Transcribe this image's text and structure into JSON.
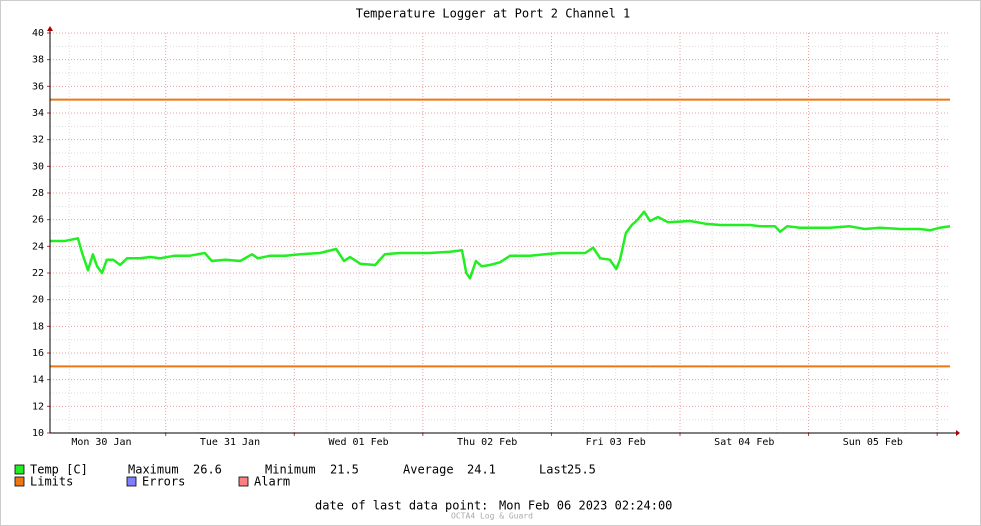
{
  "chart_data": {
    "type": "line",
    "title": "Temperature Logger at Port 2 Channel 1",
    "x": [
      0,
      2.8,
      5.2,
      6.0,
      7.1,
      8.0,
      8.8,
      9.7,
      10.6,
      11.8,
      13.1,
      14.4,
      16.8,
      18.7,
      20.5,
      23.3,
      26.1,
      28.9,
      30.2,
      32.7,
      35.5,
      37.7,
      38.8,
      41.1,
      43.9,
      46.7,
      50.4,
      53.4,
      54.9,
      56.0,
      57.9,
      60.7,
      62.5,
      65.3,
      70.9,
      74.7,
      76.9,
      77.7,
      78.4,
      79.5,
      80.6,
      82.1,
      84.0,
      85.9,
      89.6,
      92.4,
      95.2,
      99.9,
      101.4,
      102.7,
      104.5,
      105.7,
      106.4,
      107.5,
      108.6,
      109.7,
      110.9,
      112.0,
      113.5,
      115.4,
      119.5,
      122.3,
      125.1,
      130.7,
      132.5,
      135.3,
      136.3,
      137.6,
      140.0,
      142.8,
      145.6,
      149.3,
      152.1,
      154.9,
      158.7,
      162.4,
      164.3,
      166.1,
      168
    ],
    "series": [
      {
        "name": "Temp [C]",
        "color": "#22ee22",
        "values": [
          24.4,
          24.4,
          24.6,
          23.5,
          22.2,
          23.4,
          22.5,
          22.0,
          23.0,
          23.0,
          22.6,
          23.1,
          23.1,
          23.2,
          23.1,
          23.3,
          23.3,
          23.5,
          22.9,
          23.0,
          22.9,
          23.4,
          23.1,
          23.3,
          23.3,
          23.4,
          23.5,
          23.8,
          22.9,
          23.2,
          22.7,
          22.6,
          23.4,
          23.5,
          23.5,
          23.6,
          23.7,
          22.0,
          21.6,
          22.9,
          22.5,
          22.6,
          22.8,
          23.3,
          23.3,
          23.4,
          23.5,
          23.5,
          23.9,
          23.1,
          23.0,
          22.3,
          23.0,
          25.0,
          25.6,
          26.0,
          26.6,
          25.9,
          26.2,
          25.8,
          25.9,
          25.7,
          25.6,
          25.6,
          25.5,
          25.5,
          25.1,
          25.5,
          25.4,
          25.4,
          25.4,
          25.5,
          25.3,
          25.4,
          25.3,
          25.3,
          25.2,
          25.4,
          25.5
        ]
      }
    ],
    "limits": {
      "name": "Limits",
      "color": "#ee7711",
      "values": [
        15,
        35
      ]
    },
    "legend_extra": [
      {
        "name": "Errors",
        "color": "#7f7fff"
      },
      {
        "name": "Alarm",
        "color": "#ff7f7f"
      }
    ],
    "xlim": [
      0,
      168
    ],
    "xticks": [
      {
        "value": 9.6,
        "label": "Mon 30 Jan"
      },
      {
        "value": 33.6,
        "label": "Tue 31 Jan"
      },
      {
        "value": 57.6,
        "label": "Wed 01 Feb"
      },
      {
        "value": 81.6,
        "label": "Thu 02 Feb"
      },
      {
        "value": 105.6,
        "label": "Fri 03 Feb"
      },
      {
        "value": 129.6,
        "label": "Sat 04 Feb"
      },
      {
        "value": 153.6,
        "label": "Sun 05 Feb"
      }
    ],
    "x_grid": [
      21.6,
      45.6,
      69.6,
      93.6,
      117.6,
      141.6,
      165.6
    ],
    "ylim": [
      10,
      40
    ],
    "yticks": [
      10,
      12,
      14,
      16,
      18,
      20,
      22,
      24,
      26,
      28,
      30,
      32,
      34,
      36,
      38,
      40
    ],
    "grid": true,
    "stats": [
      {
        "label": "Maximum",
        "value": 26.6
      },
      {
        "label": "Minimum",
        "value": 21.5
      },
      {
        "label": "Average",
        "value": 24.1
      },
      {
        "label": "Last",
        "value": 25.5
      }
    ],
    "footer": {
      "label": "date of last data point:",
      "value": "Mon Feb 06 2023 02:24:00"
    },
    "watermark": "OCTA4 Log & Guard"
  }
}
